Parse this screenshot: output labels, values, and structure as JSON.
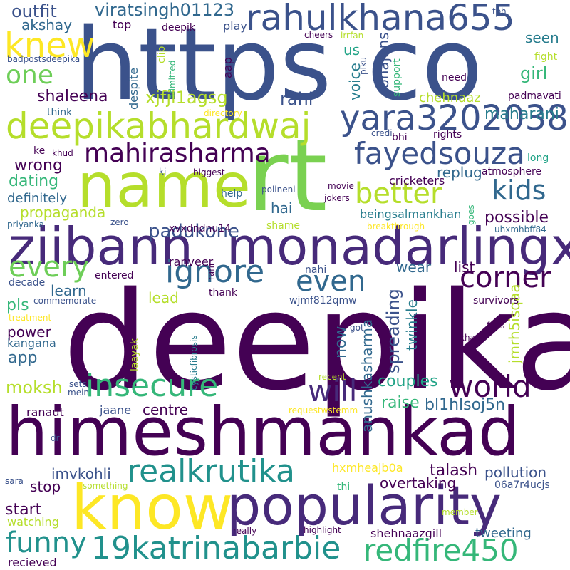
{
  "palette": {
    "purple": "#440154",
    "indigo": "#482878",
    "violet": "#472a7a",
    "blue": "#3b528b",
    "steel": "#31688e",
    "teal": "#287d8e",
    "cyan": "#21918c",
    "sea": "#20a386",
    "green": "#35b779",
    "lime": "#6ece58",
    "chartreuse": "#90d743",
    "yellowgreen": "#b5de2b",
    "yellow": "#fde725"
  },
  "words": [
    {
      "text": "deepika",
      "color": "#440154"
    },
    {
      "text": "himeshmankad",
      "color": "#440154"
    },
    {
      "text": "https",
      "color": "#3b528b"
    },
    {
      "text": "co",
      "color": "#3b528b"
    },
    {
      "text": "rt",
      "color": "#7ad151"
    },
    {
      "text": "name",
      "color": "#b5de2b"
    },
    {
      "text": "know",
      "color": "#fde725"
    },
    {
      "text": "popularity",
      "color": "#472a7a"
    },
    {
      "text": "ziibann",
      "color": "#472a7a"
    },
    {
      "text": "monadarlingx",
      "color": "#472a7a"
    },
    {
      "text": "rahulkhana655",
      "color": "#3b528b"
    },
    {
      "text": "deepikabhardwaj",
      "color": "#b5de2b"
    },
    {
      "text": "yara32020389",
      "color": "#3b528b"
    },
    {
      "text": "realkrutika",
      "color": "#21918c"
    },
    {
      "text": "insecure",
      "color": "#35b779"
    },
    {
      "text": "19katrinabarbie",
      "color": "#21918c"
    },
    {
      "text": "redfire450",
      "color": "#35b779"
    },
    {
      "text": "fayedsouza",
      "color": "#3b528b"
    },
    {
      "text": "mahirasharma",
      "color": "#440154"
    },
    {
      "text": "ignore",
      "color": "#31688e"
    },
    {
      "text": "world",
      "color": "#440154"
    },
    {
      "text": "will",
      "color": "#472a7a"
    },
    {
      "text": "funny",
      "color": "#21918c"
    },
    {
      "text": "corner",
      "color": "#440154"
    },
    {
      "text": "kids",
      "color": "#31688e"
    },
    {
      "text": "knew",
      "color": "#fde725"
    },
    {
      "text": "one",
      "color": "#6ece58"
    },
    {
      "text": "every",
      "color": "#6ece58"
    },
    {
      "text": "better",
      "color": "#b5de2b"
    },
    {
      "text": "even",
      "color": "#31688e"
    },
    {
      "text": "padukone",
      "color": "#3b528b"
    },
    {
      "text": "viratsingh01123",
      "color": "#31688e"
    },
    {
      "text": "outfit",
      "color": "#3b528b"
    },
    {
      "text": "akshay",
      "color": "#31688e"
    },
    {
      "text": "shaleena",
      "color": "#440154"
    },
    {
      "text": "xjfjl1agsg",
      "color": "#b5de2b"
    },
    {
      "text": "rahi",
      "color": "#3b528b"
    },
    {
      "text": "bhajans",
      "color": "#3b528b"
    },
    {
      "text": "voice",
      "color": "#287d8e"
    },
    {
      "text": "us",
      "color": "#20a386"
    },
    {
      "text": "girl",
      "color": "#35b779"
    },
    {
      "text": "seen",
      "color": "#287d8e"
    },
    {
      "text": "chehnaaz",
      "color": "#b5de2b"
    },
    {
      "text": "maharani",
      "color": "#287d8e"
    },
    {
      "text": "wrong",
      "color": "#440154"
    },
    {
      "text": "dating",
      "color": "#35b779"
    },
    {
      "text": "definitely",
      "color": "#31688e"
    },
    {
      "text": "propaganda",
      "color": "#b5de2b"
    },
    {
      "text": "hai",
      "color": "#31688e"
    },
    {
      "text": "replug",
      "color": "#31688e"
    },
    {
      "text": "possible",
      "color": "#440154"
    },
    {
      "text": "beingsalmankhan",
      "color": "#287d8e"
    },
    {
      "text": "ranveer",
      "color": "#440154"
    },
    {
      "text": "learn",
      "color": "#31688e"
    },
    {
      "text": "lead",
      "color": "#b5de2b"
    },
    {
      "text": "pls",
      "color": "#35b779"
    },
    {
      "text": "power",
      "color": "#440154"
    },
    {
      "text": "kangana",
      "color": "#31688e"
    },
    {
      "text": "app",
      "color": "#31688e"
    },
    {
      "text": "moksh",
      "color": "#b5de2b"
    },
    {
      "text": "wear",
      "color": "#31688e"
    },
    {
      "text": "list",
      "color": "#440154"
    },
    {
      "text": "spreading",
      "color": "#3b528b"
    },
    {
      "text": "twinkle",
      "color": "#287d8e"
    },
    {
      "text": "now",
      "color": "#31688e"
    },
    {
      "text": "anushkasharma",
      "color": "#31688e"
    },
    {
      "text": "jmrh5isqaa",
      "color": "#b5de2b"
    },
    {
      "text": "couples",
      "color": "#20a386"
    },
    {
      "text": "raise",
      "color": "#35b779"
    },
    {
      "text": "bl1hlsoj5n",
      "color": "#31688e"
    },
    {
      "text": "centre",
      "color": "#440154"
    },
    {
      "text": "imvkohli",
      "color": "#3b528b"
    },
    {
      "text": "stop",
      "color": "#440154"
    },
    {
      "text": "start",
      "color": "#440154"
    },
    {
      "text": "watching",
      "color": "#b5de2b"
    },
    {
      "text": "talash",
      "color": "#440154"
    },
    {
      "text": "pollution",
      "color": "#3b528b"
    },
    {
      "text": "overtaking",
      "color": "#440154"
    },
    {
      "text": "hxmheajb0a",
      "color": "#fde725"
    },
    {
      "text": "tweeting",
      "color": "#31688e"
    },
    {
      "text": "shehnaazgill",
      "color": "#440154"
    },
    {
      "text": "recieved",
      "color": "#440154"
    },
    {
      "text": "ranaut",
      "color": "#440154"
    },
    {
      "text": "jaane",
      "color": "#3b528b"
    },
    {
      "text": "top",
      "color": "#440154"
    },
    {
      "text": "deepik",
      "color": "#440154"
    },
    {
      "text": "play",
      "color": "#3b528b"
    },
    {
      "text": "toh",
      "color": "#3b528b"
    },
    {
      "text": "clip",
      "color": "#b5de2b"
    },
    {
      "text": "aap",
      "color": "#440154"
    },
    {
      "text": "admitted",
      "color": "#35b779"
    },
    {
      "text": "despite",
      "color": "#31688e"
    },
    {
      "text": "think",
      "color": "#31688e"
    },
    {
      "text": "directory",
      "color": "#fde725"
    },
    {
      "text": "support",
      "color": "#35b779"
    },
    {
      "text": "cheers",
      "color": "#440154"
    },
    {
      "text": "irrfan",
      "color": "#b5de2b"
    },
    {
      "text": "piku",
      "color": "#3b528b"
    },
    {
      "text": "fight",
      "color": "#b5de2b"
    },
    {
      "text": "need",
      "color": "#440154"
    },
    {
      "text": "padmavati",
      "color": "#440154"
    },
    {
      "text": "credi",
      "color": "#3b528b"
    },
    {
      "text": "bhi",
      "color": "#440154"
    },
    {
      "text": "rights",
      "color": "#440154"
    },
    {
      "text": "long",
      "color": "#20a386"
    },
    {
      "text": "khud",
      "color": "#440154"
    },
    {
      "text": "ke",
      "color": "#440154"
    },
    {
      "text": "ki",
      "color": "#3b528b"
    },
    {
      "text": "biggest",
      "color": "#440154"
    },
    {
      "text": "cricketers",
      "color": "#440154"
    },
    {
      "text": "atmosphere",
      "color": "#440154"
    },
    {
      "text": "movie",
      "color": "#440154"
    },
    {
      "text": "jokers",
      "color": "#440154"
    },
    {
      "text": "goes",
      "color": "#35b779"
    },
    {
      "text": "polineni",
      "color": "#3b528b"
    },
    {
      "text": "help",
      "color": "#31688e"
    },
    {
      "text": "shame",
      "color": "#b5de2b"
    },
    {
      "text": "breakthrough",
      "color": "#fde725"
    },
    {
      "text": "priyanka",
      "color": "#31688e"
    },
    {
      "text": "zero",
      "color": "#3b528b"
    },
    {
      "text": "xvxdndnu14",
      "color": "#440154"
    },
    {
      "text": "uhxmhbff84",
      "color": "#31688e"
    },
    {
      "text": "rani",
      "color": "#440154"
    },
    {
      "text": "entered",
      "color": "#440154"
    },
    {
      "text": "decade",
      "color": "#3b528b"
    },
    {
      "text": "commemorate",
      "color": "#3b528b"
    },
    {
      "text": "nahi",
      "color": "#3b528b"
    },
    {
      "text": "thank",
      "color": "#440154"
    },
    {
      "text": "wjmf812qmw",
      "color": "#3b528b"
    },
    {
      "text": "survivors",
      "color": "#440154"
    },
    {
      "text": "treatment",
      "color": "#fde725"
    },
    {
      "text": "laayak",
      "color": "#b5de2b"
    },
    {
      "text": "cysticfibrosis",
      "color": "#287d8e"
    },
    {
      "text": "got",
      "color": "#3b528b"
    },
    {
      "text": "fans",
      "color": "#440154"
    },
    {
      "text": "khan",
      "color": "#440154"
    },
    {
      "text": "sets",
      "color": "#3b528b"
    },
    {
      "text": "mein",
      "color": "#3b528b"
    },
    {
      "text": "recent",
      "color": "#b5de2b"
    },
    {
      "text": "requestwstemm",
      "color": "#fde725"
    },
    {
      "text": "dr",
      "color": "#3b528b"
    },
    {
      "text": "sara",
      "color": "#3b528b"
    },
    {
      "text": "something",
      "color": "#b5de2b"
    },
    {
      "text": "thi",
      "color": "#35b779"
    },
    {
      "text": "06a7r4ucjs",
      "color": "#3b528b"
    },
    {
      "text": "member",
      "color": "#b5de2b"
    },
    {
      "text": "really",
      "color": "#440154"
    },
    {
      "text": "highlight",
      "color": "#440154"
    },
    {
      "text": "badpostsdeepika",
      "color": "#3b528b"
    }
  ]
}
